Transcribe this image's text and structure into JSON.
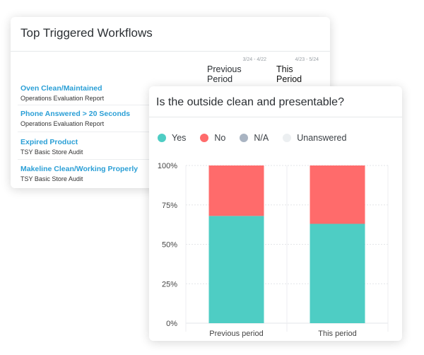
{
  "workflows_card": {
    "title": "Top Triggered Workflows",
    "periods": [
      {
        "range": "3/24 - 4/22",
        "label": "Previous Period"
      },
      {
        "range": "4/23 - 5/24",
        "label": "This Period"
      }
    ],
    "rows": [
      {
        "name": "Oven Clean/Maintained",
        "report": "Operations Evaluation Report"
      },
      {
        "name": "Phone Answered > 20 Seconds",
        "report": "Operations Evaluation Report"
      },
      {
        "name": "Expired Product",
        "report": "TSY Basic Store Audit"
      },
      {
        "name": "Makeline Clean/Working Properly",
        "report": "TSY Basic Store Audit"
      }
    ]
  },
  "chart_card": {
    "title": "Is the outside clean and presentable?",
    "legend": [
      {
        "label": "Yes",
        "color": "#4ecdc4"
      },
      {
        "label": "No",
        "color": "#ff6b6b"
      },
      {
        "label": "N/A",
        "color": "#a9b4c2"
      },
      {
        "label": "Unanswered",
        "color": "#eceff1"
      }
    ]
  },
  "chart_data": {
    "type": "bar",
    "stacked": true,
    "categories": [
      "Previous period",
      "This period"
    ],
    "series": [
      {
        "name": "Yes",
        "color": "#4ecdc4",
        "values": [
          68,
          63
        ]
      },
      {
        "name": "No",
        "color": "#ff6b6b",
        "values": [
          32,
          37
        ]
      },
      {
        "name": "N/A",
        "color": "#a9b4c2",
        "values": [
          0,
          0
        ]
      },
      {
        "name": "Unanswered",
        "color": "#eceff1",
        "values": [
          0,
          0
        ]
      }
    ],
    "ylim": [
      0,
      100
    ],
    "yticks": [
      "0%",
      "25%",
      "50%",
      "75%",
      "100%"
    ],
    "grid": true,
    "legend_position": "top-left"
  }
}
